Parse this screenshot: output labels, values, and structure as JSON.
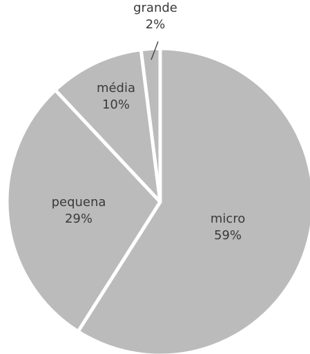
{
  "chart_data": {
    "type": "pie",
    "slices": [
      {
        "label": "micro",
        "value": 59,
        "value_label": "59%"
      },
      {
        "label": "pequena",
        "value": 29,
        "value_label": "29%"
      },
      {
        "label": "média",
        "value": 10,
        "value_label": "10%"
      },
      {
        "label": "grande",
        "value": 2,
        "value_label": "2%"
      }
    ],
    "slice_color": "#bbbbbb",
    "separator_color": "#ffffff",
    "label_color": "#3a3a3a",
    "start": "12 o'clock",
    "direction": "clockwise"
  }
}
